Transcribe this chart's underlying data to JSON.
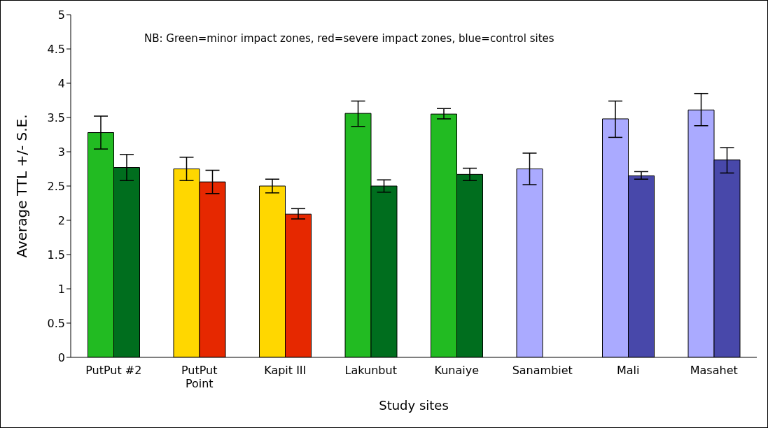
{
  "chart_data": {
    "type": "bar",
    "xlabel": "Study sites",
    "ylabel": "Average TTL +/- S.E.",
    "annotations": [
      "NB: Green=minor impact zones, red=severe impact zones, blue=control sites"
    ],
    "categories": [
      "PutPut #2",
      "PutPut Point",
      "Kapit III",
      "Lakunbut",
      "Kunaiye",
      "Sanambiet",
      "Mali",
      "Masahet"
    ],
    "series": [
      {
        "colors": [
          "#22bb22",
          "#ffd700",
          "#ffd700",
          "#22bb22",
          "#22bb22",
          "#aaaaff",
          "#aaaaff",
          "#aaaaff"
        ],
        "values": [
          3.28,
          2.75,
          2.5,
          3.56,
          3.55,
          2.75,
          3.48,
          3.61
        ],
        "errors": [
          [
            3.04,
            3.52
          ],
          [
            2.58,
            2.92
          ],
          [
            2.4,
            2.6
          ],
          [
            3.37,
            3.74
          ],
          [
            3.48,
            3.63
          ],
          [
            2.52,
            2.98
          ],
          [
            3.21,
            3.74
          ],
          [
            3.38,
            3.85
          ]
        ]
      },
      {
        "colors": [
          "#006e1e",
          "#e62800",
          "#e62800",
          "#006e1e",
          "#006e1e",
          null,
          "#4848aa",
          "#4848aa"
        ],
        "values": [
          2.77,
          2.56,
          2.09,
          2.5,
          2.67,
          null,
          2.65,
          2.88
        ],
        "errors": [
          [
            2.58,
            2.96
          ],
          [
            2.39,
            2.73
          ],
          [
            2.02,
            2.17
          ],
          [
            2.41,
            2.59
          ],
          [
            2.58,
            2.76
          ],
          null,
          [
            2.6,
            2.71
          ],
          [
            2.69,
            3.06
          ]
        ]
      }
    ],
    "ylim": [
      0,
      5
    ],
    "yticks": [
      0,
      0.5,
      1,
      1.5,
      2,
      2.5,
      3,
      3.5,
      4,
      4.5,
      5
    ],
    "grid": false
  }
}
